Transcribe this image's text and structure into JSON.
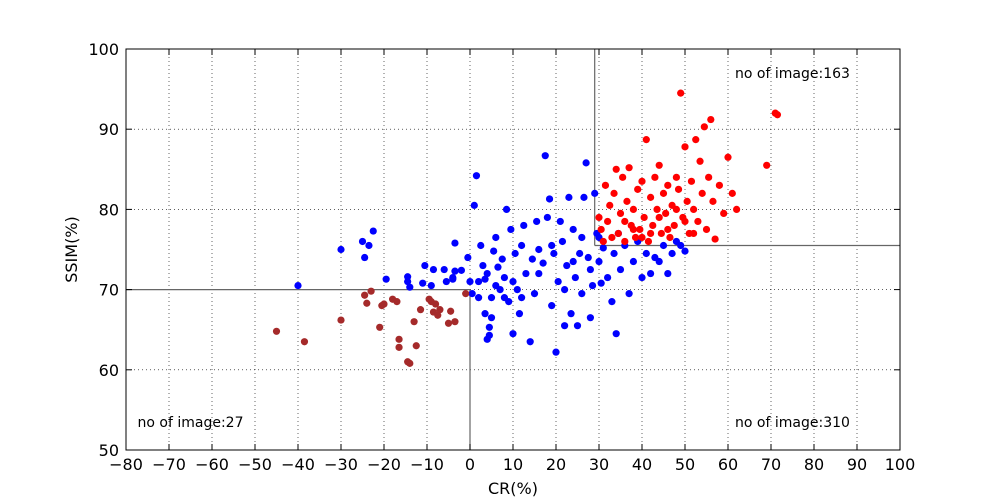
{
  "chart_data": {
    "type": "scatter",
    "title": "",
    "xlabel": "CR(%)",
    "ylabel": "SSIM(%)",
    "xlim": [
      -80,
      100
    ],
    "ylim": [
      50,
      100
    ],
    "x_ticks": [
      -80,
      -70,
      -60,
      -50,
      -40,
      -30,
      -20,
      -10,
      0,
      10,
      20,
      30,
      40,
      50,
      60,
      70,
      80,
      90,
      100
    ],
    "y_ticks": [
      50,
      60,
      70,
      80,
      90,
      100
    ],
    "x_tick_labels": [
      "−80",
      "−70",
      "−60",
      "−50",
      "−40",
      "−30",
      "−20",
      "−10",
      "0",
      "10",
      "20",
      "30",
      "40",
      "50",
      "60",
      "70",
      "80",
      "90",
      "100"
    ],
    "y_tick_labels": [
      "50",
      "60",
      "70",
      "80",
      "90",
      "100"
    ],
    "grid": true,
    "legend": "none",
    "annotations": [
      {
        "text": "no of image:163",
        "x": 75,
        "y": 97
      },
      {
        "text": "no of image:27",
        "x": -65,
        "y": 53.5
      },
      {
        "text": "no of image:310",
        "x": 75,
        "y": 53.5
      }
    ],
    "reference_lines": {
      "vertical": [
        {
          "x": 0,
          "y_from": 50,
          "y_to": 70
        },
        {
          "x": 29,
          "y_from": 75.5,
          "y_to": 100
        }
      ],
      "horizontal": [
        {
          "y": 70,
          "x_from": -80,
          "x_to": 0
        },
        {
          "y": 75.5,
          "x_from": 29,
          "x_to": 100
        }
      ]
    },
    "series": [
      {
        "color": "#0000ff",
        "points": [
          [
            -40,
            70.5
          ],
          [
            -30,
            75
          ],
          [
            -25,
            76
          ],
          [
            -24.5,
            74
          ],
          [
            -23.5,
            75.5
          ],
          [
            -22.5,
            77.3
          ],
          [
            -19.5,
            71.3
          ],
          [
            -14.5,
            71
          ],
          [
            -14.5,
            71.6
          ],
          [
            -14,
            70.3
          ],
          [
            -11,
            70.8
          ],
          [
            -10.5,
            73
          ],
          [
            -9,
            70.5
          ],
          [
            -8.5,
            72.5
          ],
          [
            -6,
            72.5
          ],
          [
            -5.5,
            71
          ],
          [
            -4,
            71.3
          ],
          [
            -4,
            71.5
          ],
          [
            -3.5,
            72.3
          ],
          [
            -3.5,
            75.8
          ],
          [
            -2,
            72.4
          ],
          [
            -0.5,
            74
          ],
          [
            0,
            71
          ],
          [
            0.5,
            69.5
          ],
          [
            1,
            80.5
          ],
          [
            1.5,
            84.2
          ],
          [
            2,
            69
          ],
          [
            2,
            71
          ],
          [
            2.5,
            75.5
          ],
          [
            3,
            73
          ],
          [
            3.5,
            67
          ],
          [
            3.5,
            71.3
          ],
          [
            4,
            63.8
          ],
          [
            4,
            72
          ],
          [
            4.5,
            64.3
          ],
          [
            4.5,
            65.3
          ],
          [
            5,
            66.5
          ],
          [
            5,
            69
          ],
          [
            5.5,
            74.8
          ],
          [
            6,
            76.5
          ],
          [
            6.5,
            72.8
          ],
          [
            7,
            70
          ],
          [
            7.5,
            73.8
          ],
          [
            8,
            71.5
          ],
          [
            8.5,
            80
          ],
          [
            9,
            68.5
          ],
          [
            9.5,
            77.5
          ],
          [
            10,
            64.5
          ],
          [
            10,
            71
          ],
          [
            10.5,
            74.5
          ],
          [
            11,
            70
          ],
          [
            11.5,
            67
          ],
          [
            12,
            75.5
          ],
          [
            12.5,
            78
          ],
          [
            13,
            72
          ],
          [
            14,
            63.5
          ],
          [
            14.5,
            73.8
          ],
          [
            15,
            69.5
          ],
          [
            15.5,
            78.5
          ],
          [
            16,
            75
          ],
          [
            17,
            73.3
          ],
          [
            17.5,
            86.7
          ],
          [
            18,
            79
          ],
          [
            18.5,
            81.3
          ],
          [
            19,
            68
          ],
          [
            19.5,
            74.5
          ],
          [
            20,
            62.2
          ],
          [
            20.5,
            71
          ],
          [
            21,
            78.5
          ],
          [
            21.5,
            76
          ],
          [
            22,
            65.5
          ],
          [
            22.5,
            73
          ],
          [
            23,
            81.5
          ],
          [
            23.5,
            67
          ],
          [
            24,
            77.5
          ],
          [
            24.5,
            71.5
          ],
          [
            25,
            65.5
          ],
          [
            25.5,
            74.5
          ],
          [
            26,
            69.5
          ],
          [
            26.5,
            81.5
          ],
          [
            27,
            85.8
          ],
          [
            27.5,
            74
          ],
          [
            28,
            66.5
          ],
          [
            28.5,
            70.5
          ],
          [
            29,
            82
          ],
          [
            29.5,
            77
          ],
          [
            30,
            73.5
          ],
          [
            30.5,
            70.8
          ],
          [
            31,
            75.2
          ],
          [
            32,
            71.5
          ],
          [
            33,
            68.5
          ],
          [
            33.5,
            74.5
          ],
          [
            34,
            64.5
          ],
          [
            34.5,
            77
          ],
          [
            35,
            72.5
          ],
          [
            36,
            75.5
          ],
          [
            37,
            69.5
          ],
          [
            38,
            73.5
          ],
          [
            39,
            76
          ],
          [
            40,
            71.5
          ],
          [
            41,
            74.5
          ],
          [
            42,
            72
          ],
          [
            43,
            74
          ],
          [
            44,
            73.5
          ],
          [
            45,
            75.5
          ],
          [
            46,
            72
          ],
          [
            47,
            74.5
          ],
          [
            48,
            76
          ],
          [
            49,
            75.5
          ],
          [
            50,
            74.8
          ],
          [
            16,
            72
          ],
          [
            19,
            75.5
          ],
          [
            22,
            70
          ],
          [
            24,
            73.5
          ],
          [
            26,
            76.5
          ],
          [
            28,
            72.5
          ],
          [
            30,
            76.5
          ],
          [
            8,
            69
          ],
          [
            12,
            69
          ],
          [
            6,
            70.5
          ]
        ]
      },
      {
        "color": "#ff0000",
        "points": [
          [
            30,
            79
          ],
          [
            30.5,
            77.5
          ],
          [
            31,
            76
          ],
          [
            31.5,
            83
          ],
          [
            32,
            78.5
          ],
          [
            32.5,
            80.5
          ],
          [
            33,
            76.5
          ],
          [
            33.5,
            82
          ],
          [
            34,
            85
          ],
          [
            34.5,
            77
          ],
          [
            35,
            79.5
          ],
          [
            35.5,
            84
          ],
          [
            36,
            76
          ],
          [
            36.5,
            81
          ],
          [
            37,
            85.2
          ],
          [
            37.5,
            78
          ],
          [
            38,
            80
          ],
          [
            38.5,
            76.5
          ],
          [
            39,
            82.5
          ],
          [
            39.5,
            77.5
          ],
          [
            40,
            83.5
          ],
          [
            40.5,
            79
          ],
          [
            41,
            88.7
          ],
          [
            41.5,
            76
          ],
          [
            42,
            81.5
          ],
          [
            42.5,
            78
          ],
          [
            43,
            84
          ],
          [
            43.5,
            80
          ],
          [
            44,
            85.5
          ],
          [
            44.5,
            77
          ],
          [
            45,
            82
          ],
          [
            45.5,
            79.5
          ],
          [
            46,
            83
          ],
          [
            46.5,
            76.5
          ],
          [
            47,
            80.5
          ],
          [
            47.5,
            78
          ],
          [
            48,
            84
          ],
          [
            48.5,
            82.5
          ],
          [
            49,
            94.5
          ],
          [
            49.5,
            79
          ],
          [
            50,
            87.8
          ],
          [
            50.5,
            81
          ],
          [
            51,
            77
          ],
          [
            51.5,
            83.5
          ],
          [
            52,
            80
          ],
          [
            52.5,
            88.7
          ],
          [
            53,
            78.5
          ],
          [
            53.5,
            86
          ],
          [
            54,
            82
          ],
          [
            54.5,
            90.3
          ],
          [
            55,
            77.5
          ],
          [
            55.5,
            84
          ],
          [
            56,
            91.2
          ],
          [
            56.5,
            81
          ],
          [
            57,
            76.3
          ],
          [
            58,
            83
          ],
          [
            59,
            79.5
          ],
          [
            60,
            86.5
          ],
          [
            61,
            82
          ],
          [
            62,
            80
          ],
          [
            69,
            85.5
          ],
          [
            71,
            92
          ],
          [
            71.5,
            91.8
          ],
          [
            36,
            78.5
          ],
          [
            38,
            77.5
          ],
          [
            40,
            76.5
          ],
          [
            42,
            77
          ],
          [
            44,
            79
          ],
          [
            46,
            77.5
          ],
          [
            48,
            80
          ],
          [
            50,
            78.5
          ],
          [
            52,
            77
          ]
        ]
      },
      {
        "color": "#a52a2a",
        "points": [
          [
            -45,
            64.8
          ],
          [
            -38.5,
            63.5
          ],
          [
            -30,
            66.2
          ],
          [
            -24.5,
            69.3
          ],
          [
            -24,
            68.3
          ],
          [
            -23,
            69.8
          ],
          [
            -21,
            65.3
          ],
          [
            -20.5,
            68
          ],
          [
            -20,
            68.2
          ],
          [
            -18,
            68.8
          ],
          [
            -17,
            68.5
          ],
          [
            -16.5,
            62.8
          ],
          [
            -16.5,
            63.8
          ],
          [
            -14.5,
            61
          ],
          [
            -14,
            60.8
          ],
          [
            -13,
            66
          ],
          [
            -12.5,
            63
          ],
          [
            -11.5,
            67.5
          ],
          [
            -9.5,
            68.8
          ],
          [
            -9,
            68.5
          ],
          [
            -8.5,
            67.2
          ],
          [
            -8,
            68.2
          ],
          [
            -7.5,
            66.8
          ],
          [
            -7,
            67.5
          ],
          [
            -5,
            65.8
          ],
          [
            -4.5,
            67.3
          ],
          [
            -3.5,
            66
          ],
          [
            -1,
            69.5
          ]
        ]
      }
    ]
  }
}
